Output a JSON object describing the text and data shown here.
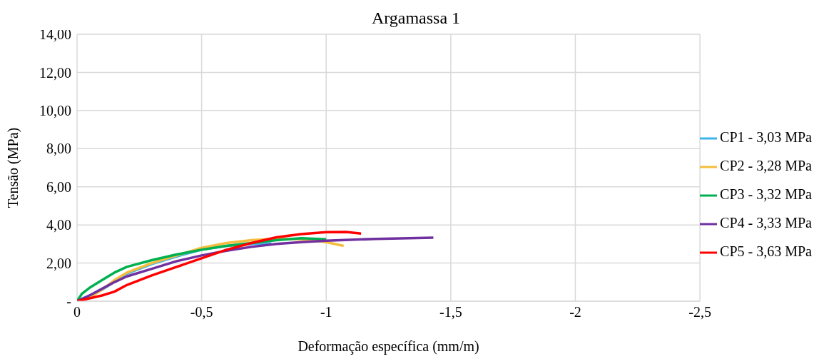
{
  "chart_data": {
    "type": "line",
    "title": "Argamassa 1",
    "xlabel": "Deformação específica (mm/m)",
    "ylabel": "Tensão (MPa)",
    "xlim": [
      0,
      -2.5
    ],
    "xticks": [
      0,
      {
        "value": -0.5,
        "label": "-0,5"
      },
      -1,
      {
        "value": -1.5,
        "label": "-1,5"
      },
      -2,
      {
        "value": -2.5,
        "label": "-2,5"
      }
    ],
    "ylim": [
      0,
      14
    ],
    "yticks": [
      {
        "value": 0,
        "label": "-"
      },
      {
        "value": 2,
        "label": "2,00"
      },
      {
        "value": 4,
        "label": "4,00"
      },
      {
        "value": 6,
        "label": "6,00"
      },
      {
        "value": 8,
        "label": "8,00"
      },
      {
        "value": 10,
        "label": "10,00"
      },
      {
        "value": 12,
        "label": "12,00"
      },
      {
        "value": 14,
        "label": "14,00"
      }
    ],
    "grid": true,
    "legend": "right",
    "marker": "none",
    "line_style": "solid",
    "series": [
      {
        "name": "CP1 - 3,03 MPa",
        "color": "#3fb3ea",
        "x": [
          0,
          -0.1,
          -0.2,
          -0.3,
          -0.4,
          -0.5,
          -0.6,
          -0.7,
          -0.78
        ],
        "values": [
          0,
          0.6,
          1.45,
          1.95,
          2.35,
          2.7,
          2.9,
          3.0,
          3.03
        ]
      },
      {
        "name": "CP2 - 3,28 MPa",
        "color": "#f4bd3c",
        "x": [
          0,
          -0.05,
          -0.1,
          -0.15,
          -0.2,
          -0.3,
          -0.4,
          -0.5,
          -0.6,
          -0.7,
          -0.8,
          -0.9,
          -1.0,
          -1.07
        ],
        "values": [
          0,
          0.2,
          0.6,
          1.1,
          1.5,
          2.0,
          2.4,
          2.8,
          3.05,
          3.2,
          3.28,
          3.25,
          3.1,
          2.9
        ]
      },
      {
        "name": "CP3 - 3,32 MPa",
        "color": "#00b050",
        "x": [
          0,
          -0.02,
          -0.05,
          -0.1,
          -0.15,
          -0.2,
          -0.3,
          -0.4,
          -0.5,
          -0.6,
          -0.7,
          -0.8,
          -0.9,
          -1.0
        ],
        "values": [
          0,
          0.4,
          0.7,
          1.1,
          1.5,
          1.8,
          2.15,
          2.45,
          2.7,
          2.9,
          3.05,
          3.2,
          3.3,
          3.25
        ]
      },
      {
        "name": "CP4 - 3,33 MPa",
        "color": "#7030a0",
        "x": [
          0,
          -0.05,
          -0.1,
          -0.15,
          -0.2,
          -0.3,
          -0.4,
          -0.5,
          -0.6,
          -0.7,
          -0.8,
          -0.9,
          -1.0,
          -1.2,
          -1.43
        ],
        "values": [
          0,
          0.3,
          0.65,
          1.0,
          1.3,
          1.7,
          2.1,
          2.4,
          2.65,
          2.85,
          3.0,
          3.1,
          3.17,
          3.27,
          3.33
        ]
      },
      {
        "name": "CP5 - 3,63 MPa",
        "color": "#ff0000",
        "x": [
          0,
          -0.1,
          -0.15,
          -0.2,
          -0.3,
          -0.4,
          -0.5,
          -0.6,
          -0.7,
          -0.8,
          -0.9,
          -1.0,
          -1.08,
          -1.14
        ],
        "values": [
          0,
          0.3,
          0.5,
          0.85,
          1.35,
          1.8,
          2.25,
          2.7,
          3.05,
          3.35,
          3.52,
          3.62,
          3.63,
          3.55
        ]
      }
    ]
  }
}
